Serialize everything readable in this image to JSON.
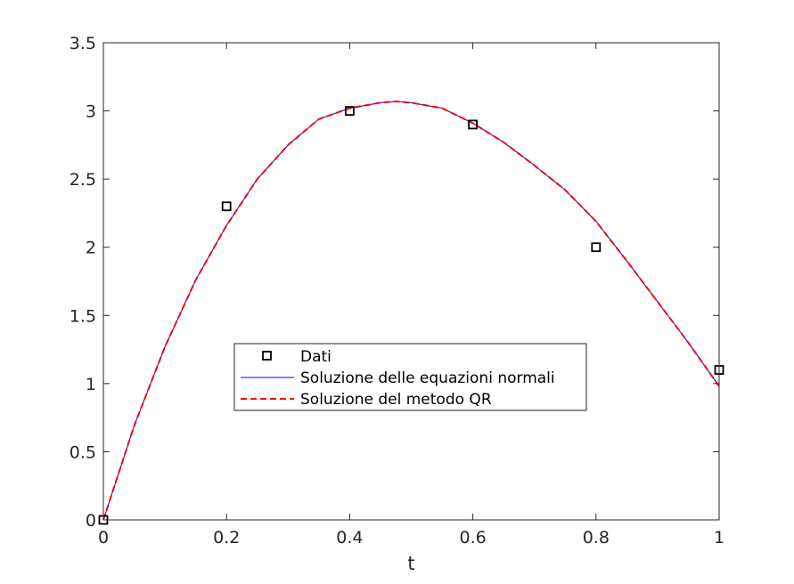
{
  "chart_data": {
    "type": "line",
    "title": "",
    "xlabel": "t",
    "ylabel": "",
    "xlim": [
      0,
      1
    ],
    "ylim": [
      0,
      3.5
    ],
    "xticks": [
      "0",
      "0.2",
      "0.4",
      "0.6",
      "0.8",
      "1"
    ],
    "yticks": [
      "0",
      "0.5",
      "1",
      "1.5",
      "2",
      "2.5",
      "3",
      "3.5"
    ],
    "grid": false,
    "legend_position": "center",
    "series": [
      {
        "name": "Dati",
        "style": "square-markers",
        "color": "#000000",
        "x": [
          0,
          0.2,
          0.4,
          0.6,
          0.8,
          1
        ],
        "y": [
          0,
          2.3,
          3.0,
          2.9,
          2.0,
          1.1
        ]
      },
      {
        "name": "Soluzione delle equazioni normali",
        "style": "solid-line",
        "color": "#0000ff",
        "x": [
          0,
          0.05,
          0.1,
          0.15,
          0.2,
          0.25,
          0.3,
          0.35,
          0.4,
          0.45,
          0.475,
          0.5,
          0.55,
          0.6,
          0.65,
          0.7,
          0.75,
          0.8,
          0.85,
          0.9,
          0.95,
          1
        ],
        "y": [
          0,
          0.69,
          1.27,
          1.76,
          2.16,
          2.5,
          2.75,
          2.94,
          3.02,
          3.06,
          3.07,
          3.06,
          3.02,
          2.91,
          2.77,
          2.6,
          2.42,
          2.19,
          1.9,
          1.6,
          1.3,
          0.98
        ]
      },
      {
        "name": "Soluzione del metodo QR",
        "style": "dashed-line",
        "color": "#ff0000",
        "x": [
          0,
          0.05,
          0.1,
          0.15,
          0.2,
          0.25,
          0.3,
          0.35,
          0.4,
          0.45,
          0.475,
          0.5,
          0.55,
          0.6,
          0.65,
          0.7,
          0.75,
          0.8,
          0.85,
          0.9,
          0.95,
          1
        ],
        "y": [
          0,
          0.69,
          1.27,
          1.76,
          2.16,
          2.5,
          2.75,
          2.94,
          3.02,
          3.06,
          3.07,
          3.06,
          3.02,
          2.91,
          2.77,
          2.6,
          2.42,
          2.19,
          1.9,
          1.6,
          1.3,
          0.98
        ]
      }
    ]
  }
}
